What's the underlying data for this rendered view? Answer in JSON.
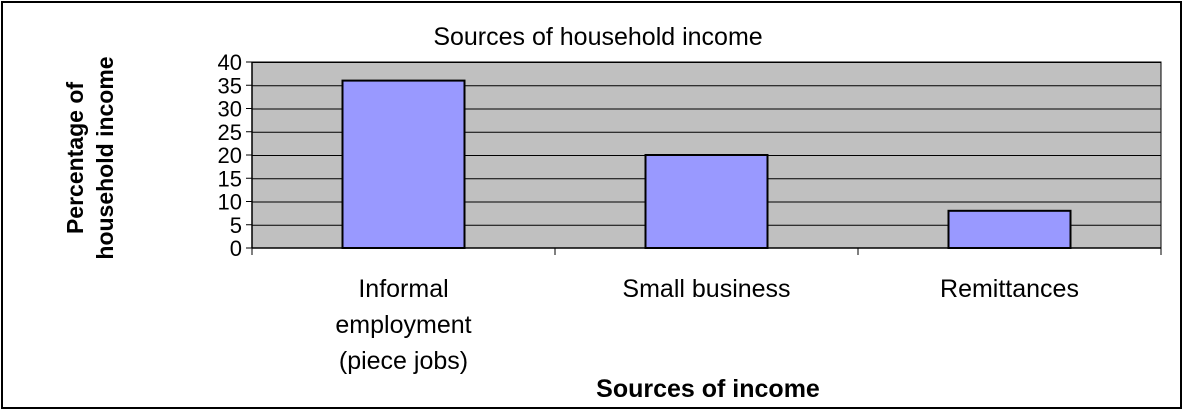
{
  "chart_data": {
    "type": "bar",
    "title": "Sources of household income",
    "xlabel": "Sources of income",
    "ylabel_lines": [
      "Percentage of",
      "household income"
    ],
    "categories": [
      [
        "Informal",
        "employment",
        "(piece jobs)"
      ],
      [
        "Small business"
      ],
      [
        "Remittances"
      ]
    ],
    "values": [
      36,
      20,
      8
    ],
    "ylim": [
      0,
      40
    ],
    "yticks": [
      0,
      5,
      10,
      15,
      20,
      25,
      30,
      35,
      40
    ],
    "grid": true,
    "legend": "none",
    "colors": {
      "bar_fill": "#9999ff",
      "bar_stroke": "#000000",
      "plot_background": "#c0c0c0",
      "gridline": "#000000",
      "frame": "#000000"
    }
  }
}
